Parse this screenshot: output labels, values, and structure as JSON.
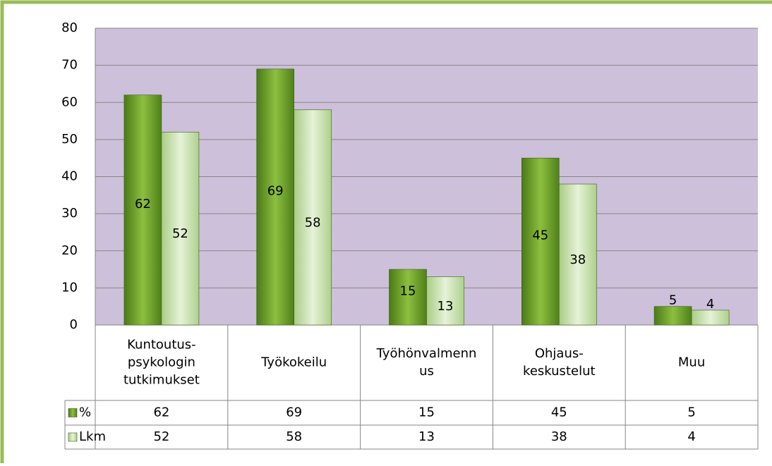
{
  "chart_data": {
    "type": "bar",
    "categories": [
      "Kuntoutus-\npsykologin\ntutkimukset",
      "Työkokeilu",
      "Työhönvalmenn\nus",
      "Ohjaus-\nkeskustelut",
      "Muu"
    ],
    "series": [
      {
        "name": "%",
        "color": "#6a9a2a",
        "values": [
          62,
          69,
          15,
          45,
          5
        ]
      },
      {
        "name": "Lkm",
        "color": "#c6e0a8",
        "values": [
          52,
          58,
          13,
          38,
          4
        ]
      }
    ],
    "ylim": [
      0,
      80
    ],
    "yticks": [
      0,
      10,
      20,
      30,
      40,
      50,
      60,
      70,
      80
    ],
    "grid": true,
    "data_table": true
  }
}
